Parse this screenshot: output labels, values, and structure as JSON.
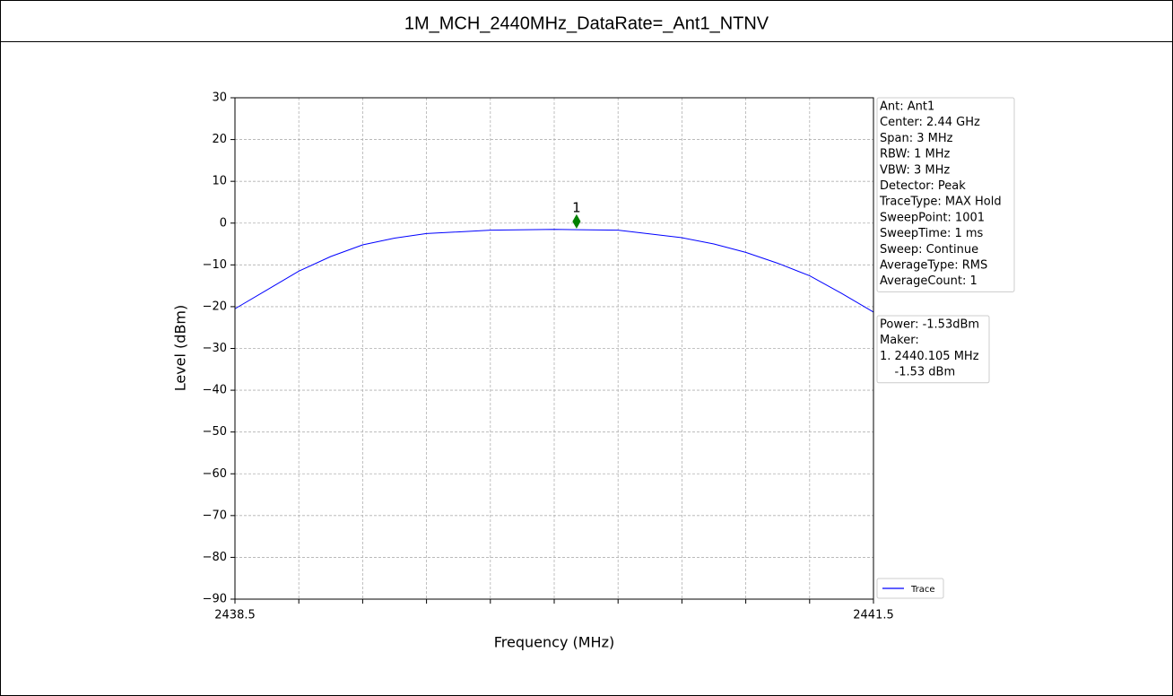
{
  "chart_data": {
    "type": "line",
    "title": "1M_MCH_2440MHz_DataRate=_Ant1_NTNV",
    "xlabel": "Frequency (MHz)",
    "ylabel": "Level (dBm)",
    "xlim": [
      2438.5,
      2441.5
    ],
    "ylim": [
      -90,
      30
    ],
    "xticks": [
      2438.5,
      2441.5
    ],
    "xminor_ticks": [
      2438.8,
      2439.1,
      2439.4,
      2439.7,
      2440.0,
      2440.3,
      2440.6,
      2440.9,
      2441.2
    ],
    "yticks": [
      {
        "value": -90,
        "label": "−90"
      },
      {
        "value": -80,
        "label": "−80"
      },
      {
        "value": -70,
        "label": "−70"
      },
      {
        "value": -60,
        "label": "−60"
      },
      {
        "value": -50,
        "label": "−50"
      },
      {
        "value": -40,
        "label": "−40"
      },
      {
        "value": -30,
        "label": "−30"
      },
      {
        "value": -20,
        "label": "−20"
      },
      {
        "value": -10,
        "label": "−10"
      },
      0,
      10,
      20,
      30
    ],
    "grid": true,
    "legend": "lower right",
    "series": [
      {
        "name": "Trace",
        "color": "#0000ff",
        "x": [
          2438.5,
          2438.65,
          2438.8,
          2438.95,
          2439.1,
          2439.25,
          2439.4,
          2439.7,
          2440.0,
          2440.3,
          2440.6,
          2440.75,
          2440.9,
          2441.05,
          2441.2,
          2441.35,
          2441.5
        ],
        "values": [
          -20.5,
          -16,
          -11.5,
          -8,
          -5.2,
          -3.6,
          -2.5,
          -1.7,
          -1.5,
          -1.7,
          -3.5,
          -5,
          -7,
          -9.6,
          -12.6,
          -16.8,
          -21.3
        ]
      }
    ],
    "marker": {
      "label": "1",
      "x": 2440.105,
      "y": -1.53,
      "color": "#008000"
    },
    "info_box": [
      "Ant: Ant1",
      "Center: 2.44 GHz",
      "Span: 3 MHz",
      "RBW: 1 MHz",
      "VBW: 3 MHz",
      "Detector: Peak",
      "TraceType: MAX Hold",
      "SweepPoint: 1001",
      "SweepTime: 1 ms",
      "Sweep: Continue",
      "AverageType: RMS",
      "AverageCount: 1"
    ],
    "marker_box": [
      "Power: -1.53dBm",
      "Maker:",
      "1. 2440.105 MHz",
      "    -1.53 dBm"
    ]
  }
}
